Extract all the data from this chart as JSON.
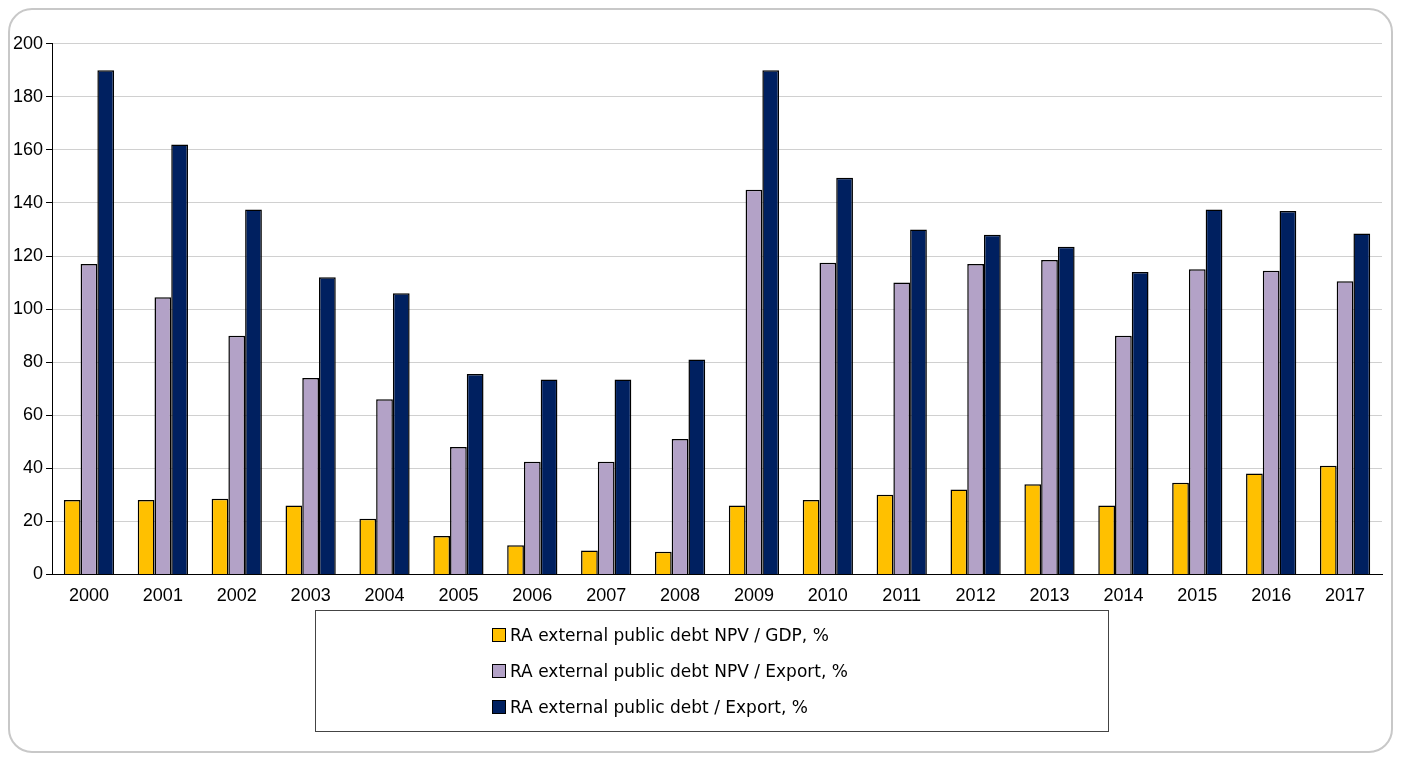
{
  "chart_data": {
    "type": "bar",
    "categories": [
      "2000",
      "2001",
      "2002",
      "2003",
      "2004",
      "2005",
      "2006",
      "2007",
      "2008",
      "2009",
      "2010",
      "2011",
      "2012",
      "2013",
      "2014",
      "2015",
      "2016",
      "2017"
    ],
    "series": [
      {
        "name": "RA external public debt NPV / GDP, %",
        "color": "#ffc000",
        "values": [
          28,
          28,
          28.5,
          26,
          21,
          14.5,
          11,
          9,
          8.5,
          26,
          28,
          30,
          32,
          34,
          26,
          34.5,
          38,
          41
        ]
      },
      {
        "name": "RA external public debt NPV / Export, %",
        "color": "#b3a2c7",
        "values": [
          117,
          104.5,
          90,
          74,
          66,
          48,
          42.5,
          42.5,
          51,
          145,
          117.5,
          110,
          117,
          118.5,
          90,
          115,
          114.5,
          110.5
        ]
      },
      {
        "name": "RA external public debt / Export, %",
        "color": "#002060",
        "values": [
          190,
          162,
          137.5,
          112,
          106,
          75.5,
          73.5,
          73.5,
          81,
          190,
          149.5,
          130,
          128,
          123.5,
          114,
          137.5,
          137,
          128.5
        ]
      }
    ],
    "ylim": [
      0,
      200
    ],
    "yticks": [
      0,
      20,
      40,
      60,
      80,
      100,
      120,
      140,
      160,
      180,
      200
    ],
    "grid": "y",
    "legend": "bottom"
  }
}
